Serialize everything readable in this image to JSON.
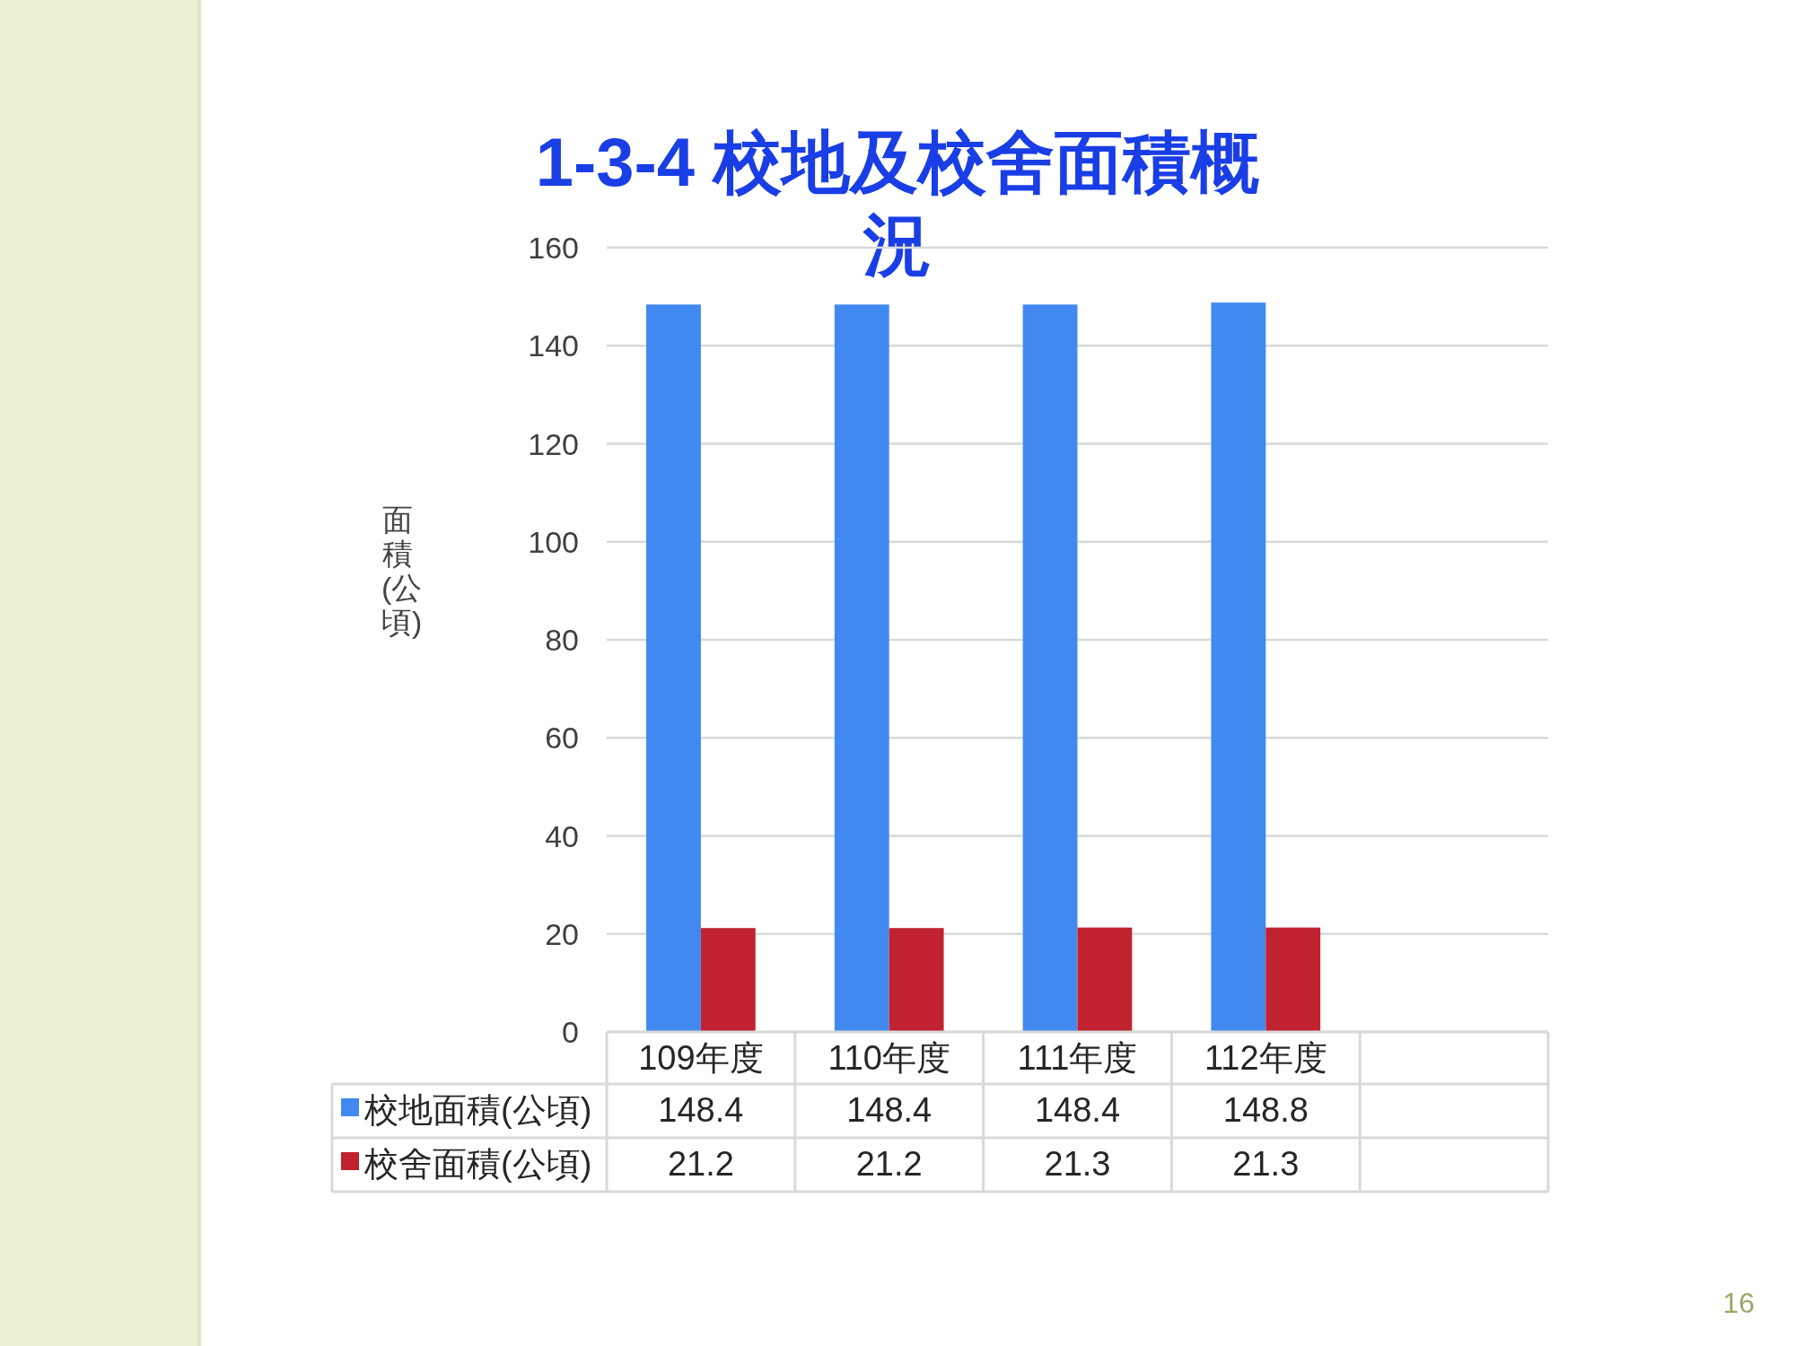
{
  "chart_data": {
    "type": "bar",
    "title": "1-3-4  校地及校舍面積概況",
    "ylabel": "面積(公頃)",
    "categories": [
      "109年度",
      "110年度",
      "111年度",
      "112年度",
      null
    ],
    "series": [
      {
        "name": "校地面積(公頃)",
        "color": "#4189f0",
        "values": [
          148.4,
          148.4,
          148.4,
          148.8,
          null
        ]
      },
      {
        "name": "校舍面積(公頃)",
        "color": "#c0232f",
        "values": [
          21.2,
          21.2,
          21.3,
          21.3,
          null
        ]
      }
    ],
    "ylim": [
      0,
      160
    ],
    "yticks": [
      0,
      20,
      40,
      60,
      80,
      100,
      120,
      140,
      160
    ],
    "grid": "y",
    "legend": "bottom",
    "data_labels": true,
    "annotations": [
      "16"
    ]
  }
}
